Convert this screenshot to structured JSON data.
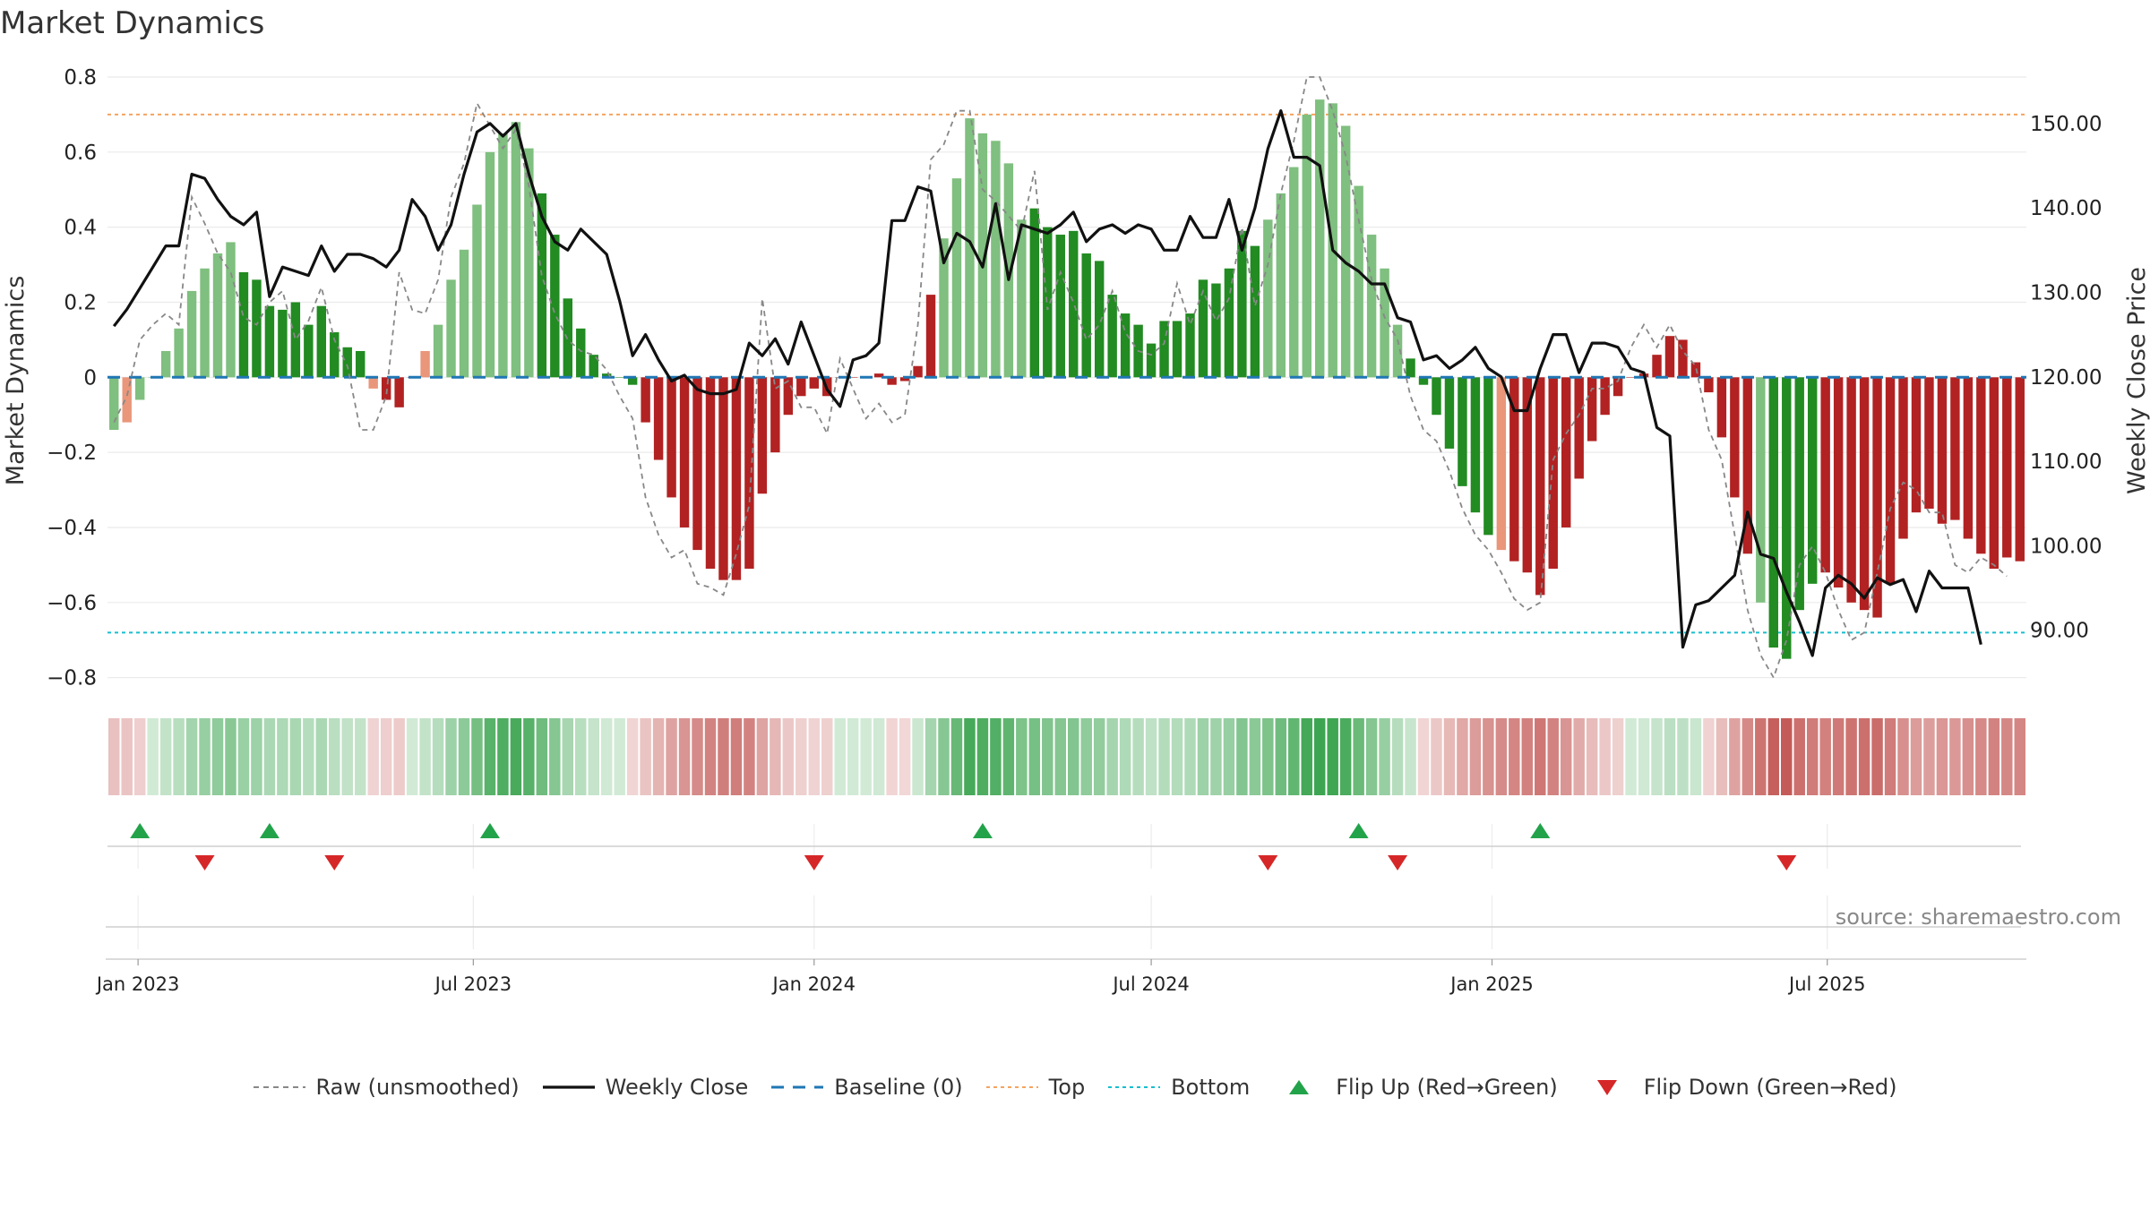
{
  "page": {
    "title": "Market Dynamics",
    "source": "source: sharemaestro.com"
  },
  "legend": [
    {
      "label": "Raw (unsmoothed)",
      "icon": "dashed-gray-line-icon"
    },
    {
      "label": "Weekly Close",
      "icon": "solid-black-line-icon"
    },
    {
      "label": "Baseline (0)",
      "icon": "dashed-blue-line-icon"
    },
    {
      "label": "Top",
      "icon": "dotted-orange-line-icon"
    },
    {
      "label": "Bottom",
      "icon": "dotted-cyan-line-icon"
    },
    {
      "label": "Flip Up (Red→Green)",
      "icon": "green-up-triangle-icon"
    },
    {
      "label": "Flip Down (Green→Red)",
      "icon": "red-down-triangle-icon"
    }
  ],
  "colors": {
    "green_strong": "#228B22",
    "green_light": "#7FBF7F",
    "red_strong": "#B22222",
    "red_light": "#E9967A",
    "raw_line": "#888888",
    "close_line": "#111111",
    "baseline": "#1f77b4",
    "top": "#F4A460",
    "bottom": "#17BECF",
    "flip_up": "#22a34a",
    "flip_down": "#d62728"
  },
  "chart_data": {
    "type": "bar",
    "title": "Market Dynamics",
    "ylabel": "Market Dynamics",
    "y2label": "Weekly Close Price",
    "ylim": [
      -0.82,
      0.8
    ],
    "y2lim": [
      83.5,
      155.5
    ],
    "yticks": [
      "0.8",
      "0.6",
      "0.4",
      "0.2",
      "0",
      "−0.2",
      "−0.4",
      "−0.6",
      "−0.8"
    ],
    "y2ticks": [
      "150.00",
      "140.00",
      "130.00",
      "120.00",
      "110.00",
      "100.00",
      "90.00"
    ],
    "xticks": [
      "Jan 2023",
      "Jul 2023",
      "Jan 2024",
      "Jul 2024",
      "Jan 2025",
      "Jul 2025"
    ],
    "x_start": "2022-12-19",
    "week_step_days": 7,
    "top_level": 0.7,
    "bottom_level": -0.68,
    "baseline": 0,
    "grid": true,
    "legend_position": "bottom",
    "series": [
      {
        "name": "Market Dynamics (bars)",
        "values": [
          -0.14,
          -0.12,
          -0.06,
          0,
          0.07,
          0.13,
          0.23,
          0.29,
          0.33,
          0.36,
          0.28,
          0.26,
          0.19,
          0.18,
          0.2,
          0.14,
          0.19,
          0.12,
          0.08,
          0.07,
          -0.03,
          -0.06,
          -0.08,
          0,
          0.07,
          0.14,
          0.26,
          0.34,
          0.46,
          0.6,
          0.65,
          0.68,
          0.61,
          0.49,
          0.38,
          0.21,
          0.13,
          0.06,
          0.01,
          0,
          -0.02,
          -0.12,
          -0.22,
          -0.32,
          -0.4,
          -0.46,
          -0.51,
          -0.54,
          -0.54,
          -0.51,
          -0.31,
          -0.2,
          -0.1,
          -0.05,
          -0.03,
          -0.05,
          0,
          0,
          0,
          0.01,
          -0.02,
          -0.01,
          0.03,
          0.22,
          0.37,
          0.53,
          0.69,
          0.65,
          0.63,
          0.57,
          0.42,
          0.45,
          0.4,
          0.38,
          0.39,
          0.33,
          0.31,
          0.22,
          0.17,
          0.14,
          0.09,
          0.15,
          0.15,
          0.17,
          0.26,
          0.25,
          0.29,
          0.39,
          0.35,
          0.42,
          0.49,
          0.56,
          0.7,
          0.74,
          0.73,
          0.67,
          0.51,
          0.38,
          0.29,
          0.14,
          0.05,
          -0.02,
          -0.1,
          -0.19,
          -0.29,
          -0.36,
          -0.42,
          -0.46,
          -0.49,
          -0.52,
          -0.58,
          -0.51,
          -0.4,
          -0.27,
          -0.17,
          -0.1,
          -0.05,
          0,
          0.01,
          0.06,
          0.11,
          0.1,
          0.04,
          -0.04,
          -0.16,
          -0.32,
          -0.47,
          -0.6,
          -0.72,
          -0.75,
          -0.62,
          -0.55,
          -0.52,
          -0.56,
          -0.6,
          -0.62,
          -0.64,
          -0.55,
          -0.43,
          -0.36,
          -0.35,
          -0.39,
          -0.38,
          -0.43,
          -0.47,
          -0.51,
          -0.48,
          -0.49
        ],
        "colors_key": "gsggggggggGGGGGGGGGGrRRRsggggggggGGGGGGGGRRRRRRRRRRRRRRRRRRRRRRRgggggggGGGGGGGGGGGGGGGGGGgggggggggggGGGGGGGrRRRRRRRRRRRRRRRRRRRgGGGGRRRRRRRRRRRRRRRRRRRRRRRRRRR"
      },
      {
        "name": "Raw (unsmoothed)",
        "values": [
          -0.12,
          -0.05,
          0.1,
          0.14,
          0.17,
          0.14,
          0.48,
          0.41,
          0.33,
          0.28,
          0.16,
          0.14,
          0.2,
          0.23,
          0.1,
          0.15,
          0.24,
          0.1,
          0.03,
          -0.14,
          -0.14,
          -0.05,
          0.28,
          0.18,
          0.17,
          0.26,
          0.48,
          0.57,
          0.73,
          0.67,
          0.61,
          0.66,
          0.51,
          0.27,
          0.17,
          0.1,
          0.07,
          0.06,
          0.02,
          -0.05,
          -0.11,
          -0.32,
          -0.42,
          -0.48,
          -0.46,
          -0.55,
          -0.56,
          -0.58,
          -0.47,
          -0.34,
          0.21,
          -0.03,
          -0.01,
          -0.08,
          -0.08,
          -0.15,
          0.05,
          -0.03,
          -0.11,
          -0.07,
          -0.12,
          -0.1,
          0.14,
          0.58,
          0.62,
          0.71,
          0.71,
          0.5,
          0.47,
          0.43,
          0.39,
          0.55,
          0.18,
          0.28,
          0.2,
          0.1,
          0.14,
          0.23,
          0.12,
          0.07,
          0.06,
          0.09,
          0.25,
          0.14,
          0.23,
          0.15,
          0.21,
          0.4,
          0.19,
          0.3,
          0.49,
          0.63,
          0.8,
          0.8,
          0.71,
          0.59,
          0.42,
          0.26,
          0.16,
          0.1,
          -0.05,
          -0.14,
          -0.17,
          -0.25,
          -0.35,
          -0.42,
          -0.46,
          -0.52,
          -0.59,
          -0.62,
          -0.6,
          -0.22,
          -0.15,
          -0.1,
          -0.03,
          -0.03,
          -0.01,
          0.08,
          0.14,
          0.08,
          0.14,
          0.07,
          0.03,
          -0.14,
          -0.22,
          -0.42,
          -0.62,
          -0.74,
          -0.8,
          -0.7,
          -0.5,
          -0.45,
          -0.52,
          -0.62,
          -0.7,
          -0.68,
          -0.52,
          -0.35,
          -0.28,
          -0.3,
          -0.36,
          -0.36,
          -0.5,
          -0.52,
          -0.48,
          -0.5,
          -0.53
        ]
      },
      {
        "name": "Weekly Close",
        "values": [
          126,
          128,
          130.5,
          133,
          135.5,
          135.5,
          144,
          143.5,
          141,
          139,
          138,
          139.5,
          129.5,
          133,
          132.5,
          132,
          135.5,
          132.5,
          134.5,
          134.5,
          134,
          133,
          135,
          141,
          139,
          135,
          138,
          144,
          149,
          150,
          148.5,
          150,
          144,
          139,
          136,
          135,
          137.5,
          136,
          134.5,
          129,
          122.5,
          125,
          122,
          119.5,
          120.2,
          118.5,
          118,
          118,
          118.5,
          124,
          122.5,
          124.5,
          121.5,
          126.5,
          122.5,
          118.5,
          116.5,
          122,
          122.5,
          124,
          138.5,
          138.5,
          142.5,
          142,
          133.5,
          137,
          136,
          133,
          140.5,
          131.5,
          138,
          137.5,
          137,
          138,
          139.5,
          136,
          137.5,
          138,
          137,
          138,
          137.5,
          135,
          135,
          139,
          136.5,
          136.5,
          141,
          135,
          140,
          147,
          151.5,
          146,
          146,
          145,
          135,
          133.5,
          132.5,
          131,
          131,
          127,
          126.5,
          122,
          122.5,
          121,
          122,
          123.5,
          121,
          120,
          116,
          116,
          121,
          125,
          125,
          120.5,
          124,
          124,
          123.5,
          121,
          120.5,
          114,
          113,
          88,
          93,
          93.5,
          95,
          96.5,
          104,
          99,
          98.5,
          94.5,
          91,
          87,
          95,
          96.5,
          95.5,
          93.8,
          96.2,
          95.4,
          96,
          92.2,
          97,
          95,
          95,
          95,
          88.3
        ]
      }
    ],
    "flips_up_week": [
      2,
      12,
      29,
      67,
      96,
      110
    ],
    "flips_down_week": [
      7,
      17,
      54,
      89,
      99,
      129
    ]
  }
}
